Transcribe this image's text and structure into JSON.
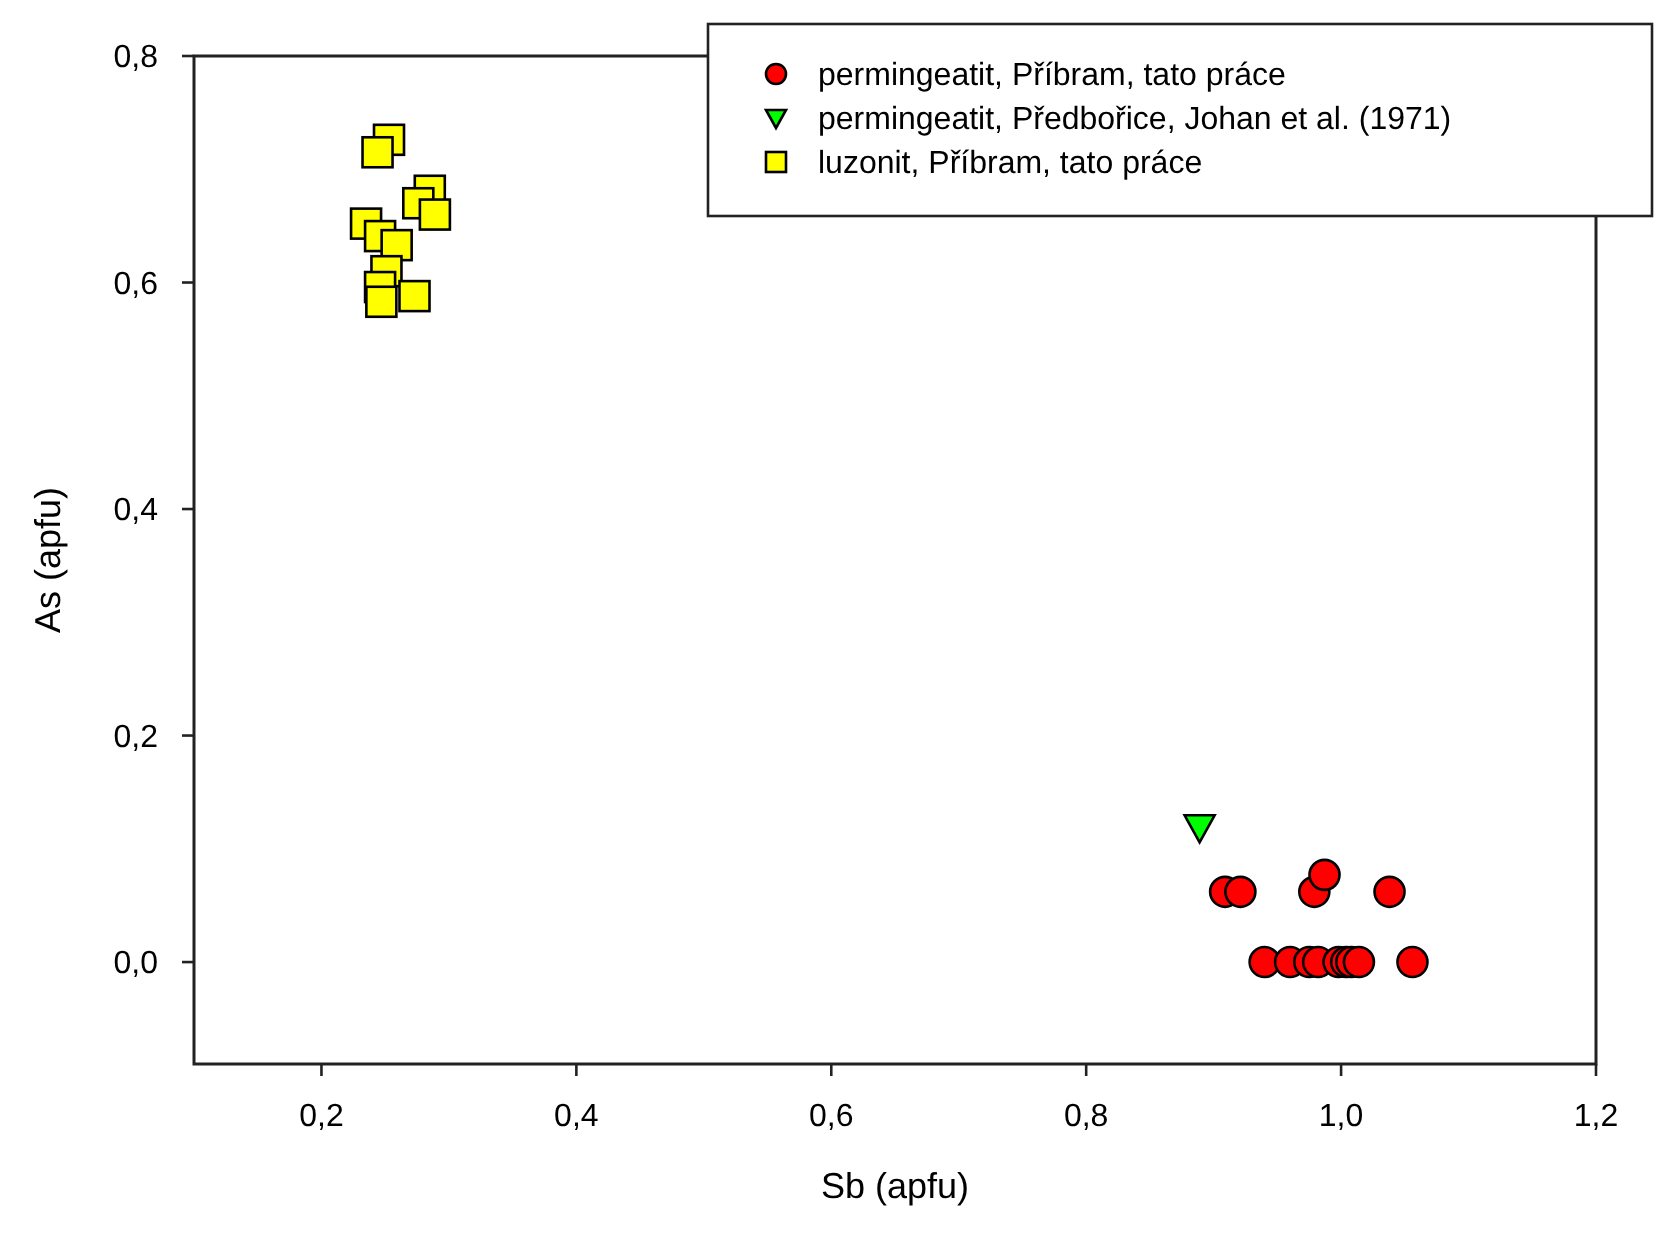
{
  "chart_data": {
    "type": "scatter",
    "xlabel": "Sb (apfu)",
    "ylabel": "As (apfu)",
    "xlim": [
      0.1,
      1.2
    ],
    "ylim": [
      -0.09,
      0.8
    ],
    "xticks": [
      {
        "value": 0.2,
        "label": "0,2"
      },
      {
        "value": 0.4,
        "label": "0,4"
      },
      {
        "value": 0.6,
        "label": "0,6"
      },
      {
        "value": 0.8,
        "label": "0,8"
      },
      {
        "value": 1.0,
        "label": "1,0"
      },
      {
        "value": 1.2,
        "label": "1,2"
      }
    ],
    "yticks": [
      {
        "value": 0.0,
        "label": "0,0"
      },
      {
        "value": 0.2,
        "label": "0,2"
      },
      {
        "value": 0.4,
        "label": "0,4"
      },
      {
        "value": 0.6,
        "label": "0,6"
      },
      {
        "value": 0.8,
        "label": "0,8"
      }
    ],
    "grid": false,
    "legend": "top right",
    "series": [
      {
        "name": "permingeatit, Příbram, tato práce",
        "color": "#ff0000",
        "marker": "circle",
        "x": [
          0.94,
          0.96,
          0.975,
          0.982,
          0.998,
          1.004,
          1.008,
          1.014,
          1.056,
          0.909,
          0.921,
          0.979,
          1.038,
          0.987
        ],
        "values": [
          0.0,
          0.0,
          0.0,
          0.0,
          0.0,
          0.0,
          0.0,
          0.0,
          0.0,
          0.062,
          0.062,
          0.062,
          0.062,
          0.077
        ]
      },
      {
        "name": "permingeatit, Předbořice, Johan et al. (1971)",
        "color": "#00ff00",
        "marker": "triangle",
        "x": [
          0.889
        ],
        "values": [
          0.119
        ]
      },
      {
        "name": "luzonit, Příbram, tato práce",
        "color": "#ffff00",
        "marker": "square",
        "x": [
          0.253,
          0.244,
          0.285,
          0.276,
          0.289,
          0.235,
          0.246,
          0.259,
          0.251,
          0.246,
          0.247,
          0.273
        ],
        "values": [
          0.726,
          0.715,
          0.681,
          0.67,
          0.66,
          0.652,
          0.641,
          0.633,
          0.61,
          0.596,
          0.583,
          0.588
        ]
      }
    ]
  }
}
